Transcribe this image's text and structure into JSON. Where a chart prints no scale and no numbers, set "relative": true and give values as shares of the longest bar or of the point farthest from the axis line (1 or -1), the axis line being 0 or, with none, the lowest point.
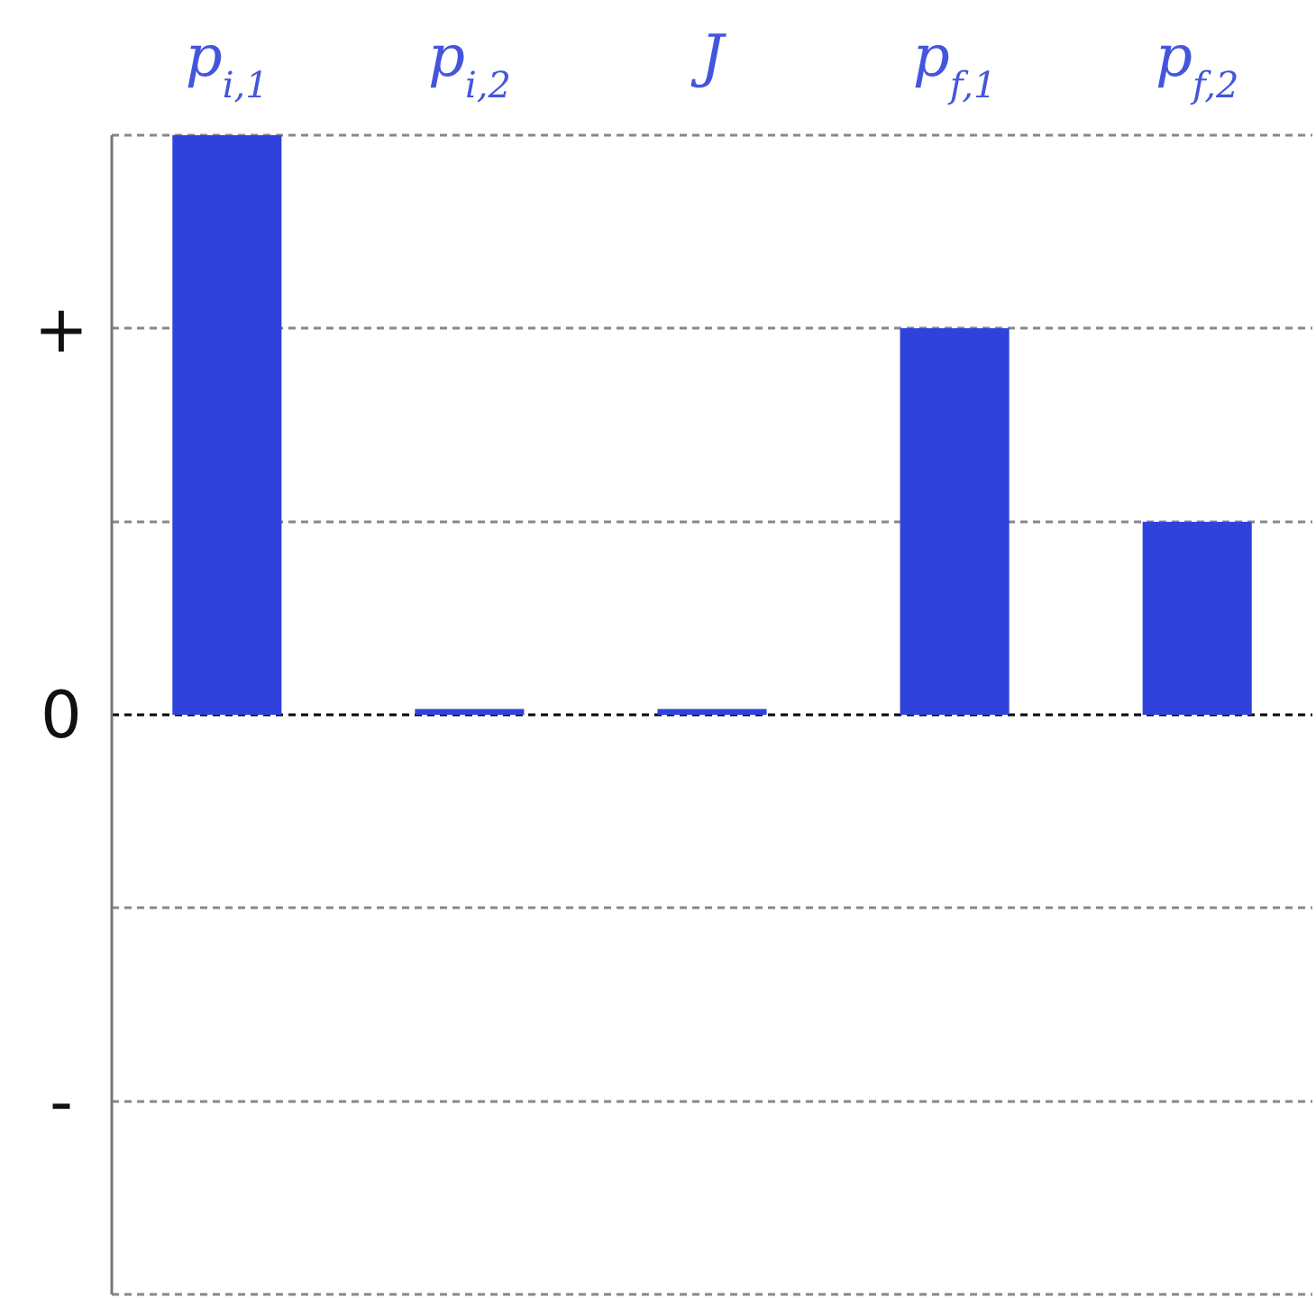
{
  "chart_data": {
    "type": "bar",
    "relative": true,
    "categories": [
      "p$_{i,1}$",
      "p$_{i,2}$",
      "J",
      "p$_{f,1}$",
      "p$_{f,2}$"
    ],
    "values": [
      1,
      0.01,
      0.01,
      0.667,
      0.333
    ],
    "color": "#3042dc",
    "annotations": [
      "+",
      "0",
      "-"
    ],
    "ref_lines": [
      {
        "axis": "y",
        "value": 1,
        "color": "#888888",
        "line_style": "dashed"
      },
      {
        "axis": "y",
        "value": 0.667,
        "color": "#888888",
        "line_style": "dashed"
      },
      {
        "axis": "y",
        "value": 0.333,
        "color": "#888888",
        "line_style": "dashed"
      },
      {
        "axis": "y",
        "value": 0,
        "color": "#000000",
        "line_style": "dashed"
      },
      {
        "axis": "y",
        "value": -0.333,
        "color": "#888888",
        "line_style": "dashed"
      },
      {
        "axis": "y",
        "value": -0.667,
        "color": "#888888",
        "line_style": "dashed"
      },
      {
        "axis": "y",
        "value": -1,
        "color": "#888888",
        "line_style": "dashed"
      }
    ]
  }
}
